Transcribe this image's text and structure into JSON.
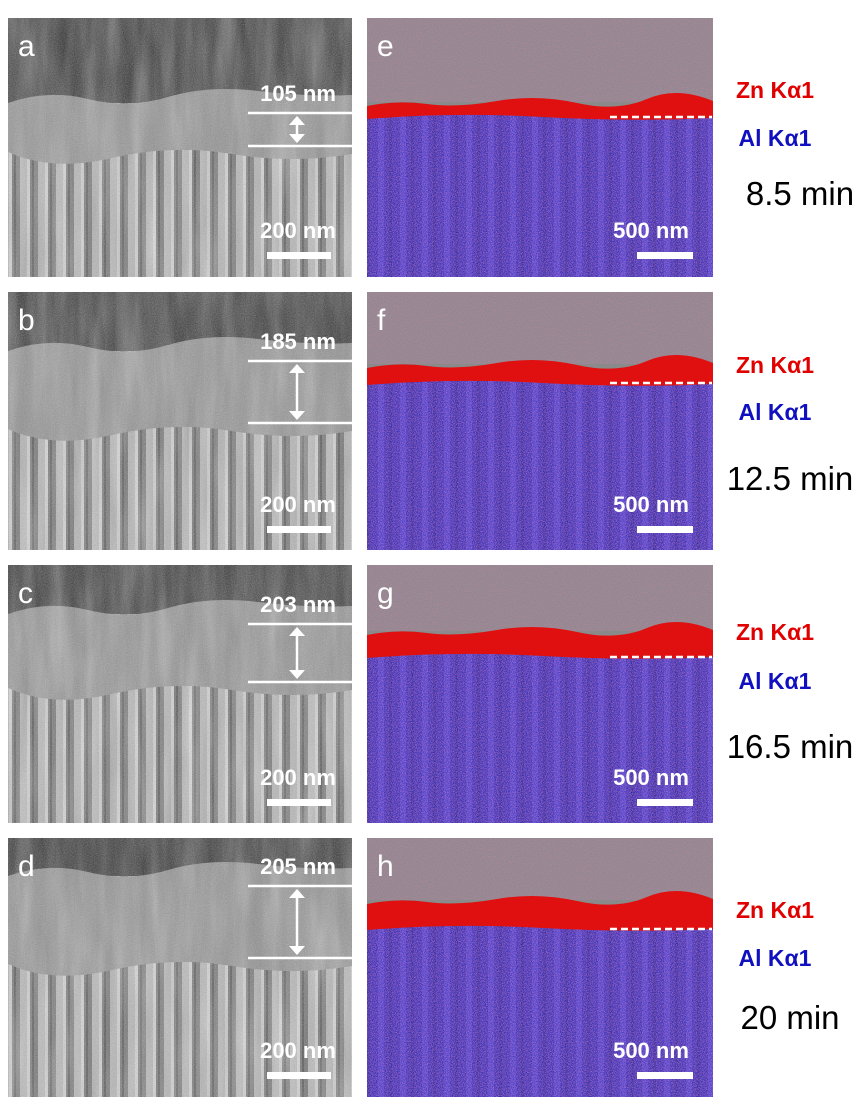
{
  "rows": [
    {
      "sem": {
        "letter": "a",
        "thickness": "105 nm",
        "scale": "200 nm"
      },
      "eds": {
        "letter": "e",
        "scale": "500 nm"
      },
      "zn": "Zn Kα1",
      "al": "Al Kα1",
      "time": "8.5 min"
    },
    {
      "sem": {
        "letter": "b",
        "thickness": "185 nm",
        "scale": "200 nm"
      },
      "eds": {
        "letter": "f",
        "scale": "500 nm"
      },
      "zn": "Zn Kα1",
      "al": "Al Kα1",
      "time": "12.5 min"
    },
    {
      "sem": {
        "letter": "c",
        "thickness": "203 nm",
        "scale": "200 nm"
      },
      "eds": {
        "letter": "g",
        "scale": "500 nm"
      },
      "zn": "Zn Kα1",
      "al": "Al Kα1",
      "time": "16.5 min"
    },
    {
      "sem": {
        "letter": "d",
        "thickness": "205 nm",
        "scale": "200 nm"
      },
      "eds": {
        "letter": "h",
        "scale": "500 nm"
      },
      "zn": "Zn Kα1",
      "al": "Al Kα1",
      "time": "20 min"
    }
  ]
}
